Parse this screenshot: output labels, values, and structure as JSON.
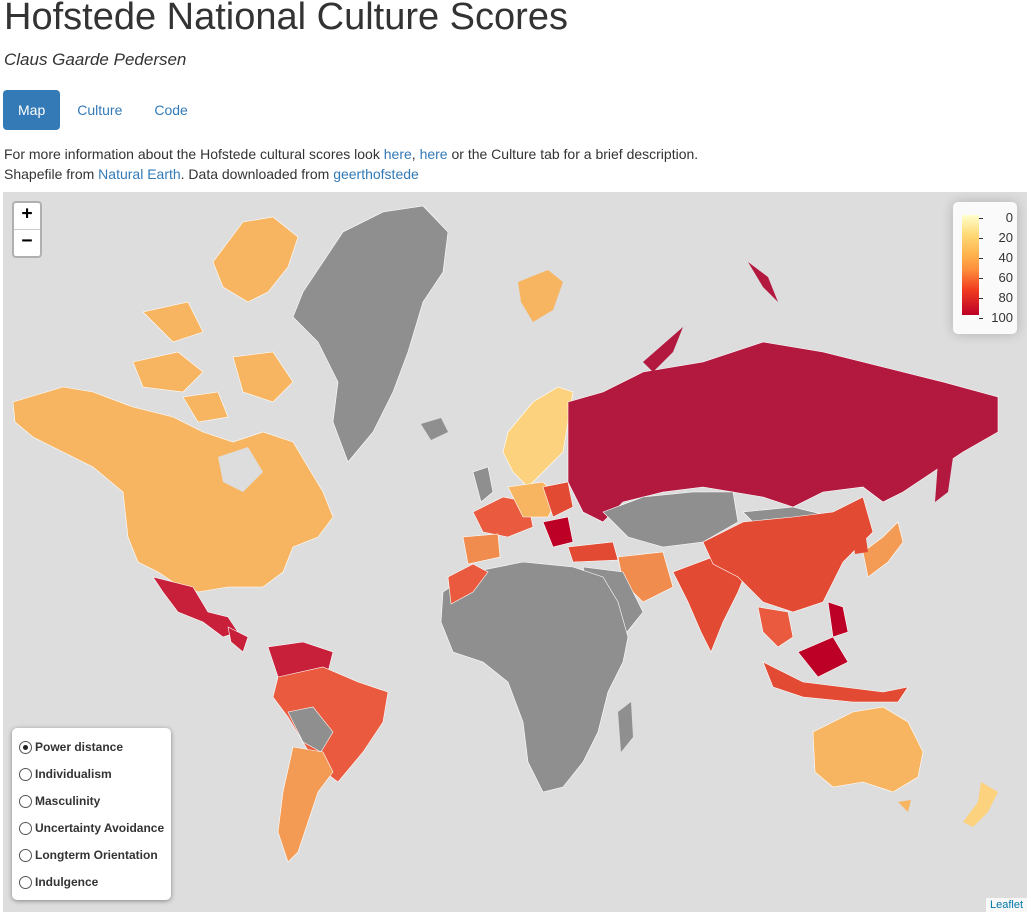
{
  "header": {
    "title": "Hofstede National Culture Scores",
    "author": "Claus Gaarde Pedersen"
  },
  "tabs": [
    {
      "label": "Map",
      "active": true
    },
    {
      "label": "Culture",
      "active": false
    },
    {
      "label": "Code",
      "active": false
    }
  ],
  "info": {
    "line1_pre": "For more information about the Hofstede cultural scores look ",
    "link_here1": "here",
    "sep": ", ",
    "link_here2": "here",
    "line1_post": " or the Culture tab for a brief description.",
    "line2_pre": "Shapefile from ",
    "link_natural_earth": "Natural Earth",
    "line2_mid": ". Data downloaded from ",
    "link_geert": "geerthofstede"
  },
  "map": {
    "zoom_in": "+",
    "zoom_out": "−",
    "legend": {
      "labels": [
        "0",
        "20",
        "40",
        "60",
        "80",
        "100"
      ]
    },
    "options": [
      {
        "label": "Power distance",
        "checked": true
      },
      {
        "label": "Individualism",
        "checked": false
      },
      {
        "label": "Masculinity",
        "checked": false
      },
      {
        "label": "Uncertainty Avoidance",
        "checked": false
      },
      {
        "label": "Longterm Orientation",
        "checked": false
      },
      {
        "label": "Indulgence",
        "checked": false
      }
    ],
    "attribution": "Leaflet",
    "colors": {
      "no_data": "#8f8f8f",
      "ocean": "#dddddd",
      "low": "#fed976",
      "mid": "#fd8d3c",
      "high": "#e34a33",
      "max": "#bd0026"
    }
  }
}
